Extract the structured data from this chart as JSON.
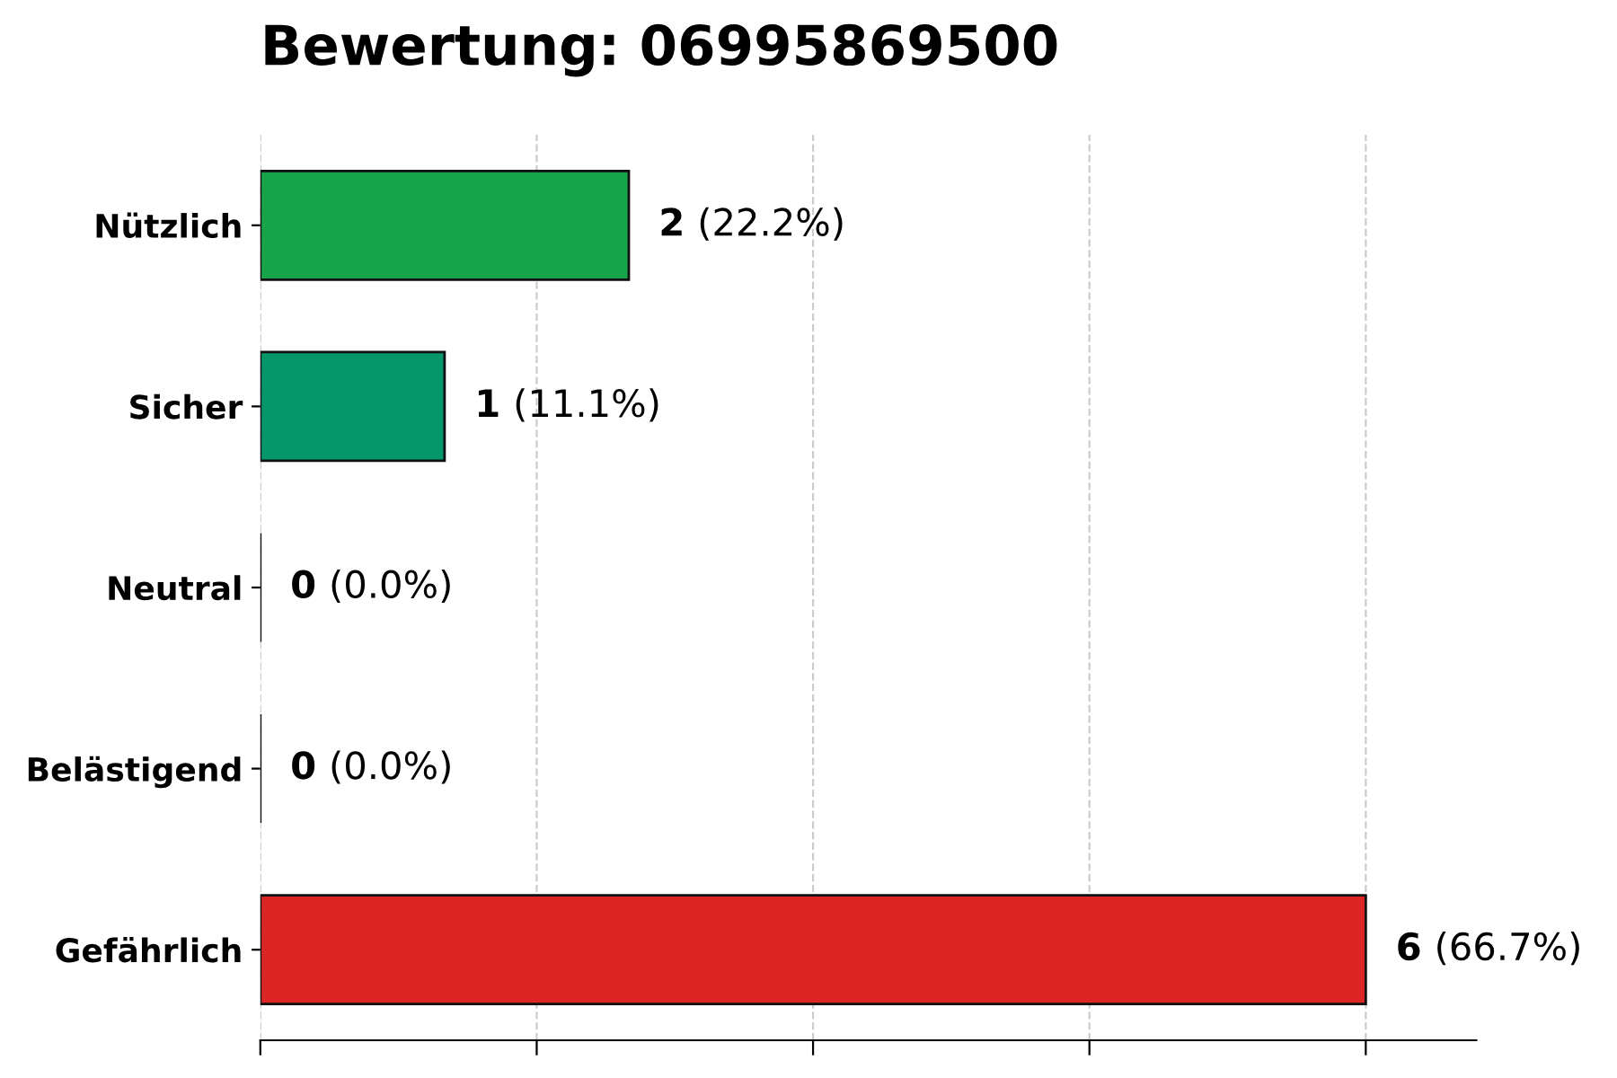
{
  "chart_data": {
    "type": "bar",
    "orientation": "horizontal",
    "title": "Bewertung: 06995869500",
    "categories": [
      "Nützlich",
      "Sicher",
      "Neutral",
      "Belästigend",
      "Gefährlich"
    ],
    "values": [
      2,
      1,
      0,
      0,
      6
    ],
    "colors": [
      "#16a34a",
      "#059669",
      "#111111",
      "#111111",
      "#dc2626"
    ],
    "value_labels": [
      "2 (22.2%)",
      "1 (11.1%)",
      "0 (0.0%)",
      "0 (0.0%)",
      "6 (66.7%)"
    ],
    "xlim": [
      0,
      6.6
    ],
    "xticks": [
      {
        "value": 0,
        "label": null
      },
      {
        "value": 1.5,
        "label": null
      },
      {
        "value": 3,
        "label": null
      },
      {
        "value": 4.5,
        "label": null
      },
      {
        "value": 6,
        "label": null
      }
    ],
    "grid": "x",
    "tick_labels": "y",
    "legend": false
  }
}
